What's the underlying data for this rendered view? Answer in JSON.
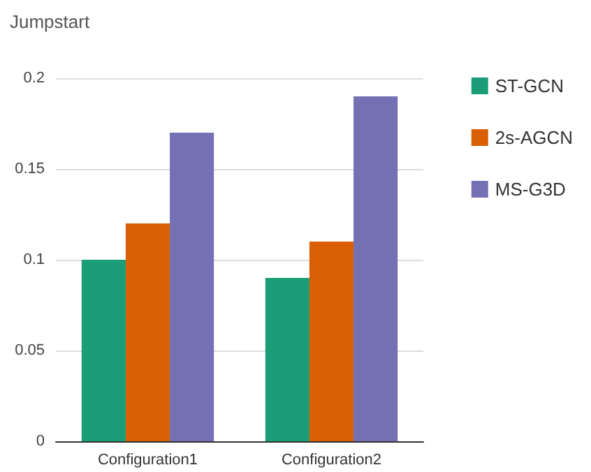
{
  "chart_data": {
    "type": "bar",
    "title": "Jumpstart",
    "categories": [
      "Configuration1",
      "Configuration2"
    ],
    "series": [
      {
        "name": "ST-GCN",
        "color": "#1b9e77",
        "values": [
          0.1,
          0.09
        ]
      },
      {
        "name": "2s-AGCN",
        "color": "#d95f02",
        "values": [
          0.12,
          0.11
        ]
      },
      {
        "name": "MS-G3D",
        "color": "#7570b3",
        "values": [
          0.17,
          0.19
        ]
      }
    ],
    "ylim": [
      0,
      0.2
    ],
    "yticks": [
      0,
      0.05,
      0.1,
      0.15,
      0.2
    ],
    "grid": "y",
    "legend": "right"
  }
}
